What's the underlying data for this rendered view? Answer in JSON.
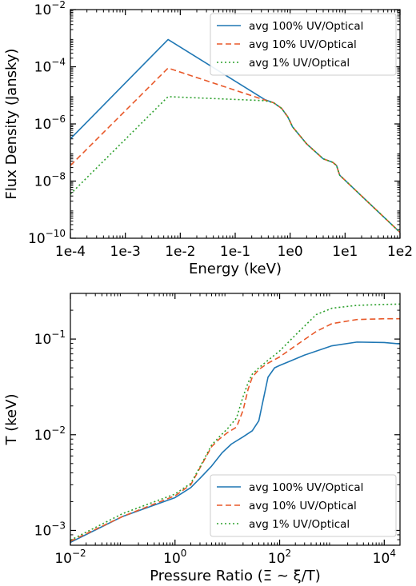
{
  "colors": {
    "blue": "#1f77b4",
    "orange": "#e8592a",
    "green": "#2ca02c"
  },
  "chart_data": [
    {
      "type": "line",
      "xlabel": "Energy (keV)",
      "ylabel": "Flux Density (Jansky)",
      "xscale": "log",
      "yscale": "log",
      "xlim": [
        0.0001,
        100
      ],
      "ylim": [
        1e-10,
        0.01
      ],
      "grid": false,
      "legend_position": "top-right",
      "x_ticks": [
        {
          "value": 0.0001,
          "label": "1e-4"
        },
        {
          "value": 0.001,
          "label": "1e-3"
        },
        {
          "value": 0.01,
          "label": "1e-2"
        },
        {
          "value": 0.1,
          "label": "1e-1"
        },
        {
          "value": 1,
          "label": "1e0"
        },
        {
          "value": 10,
          "label": "1e1"
        },
        {
          "value": 100,
          "label": "1e2"
        }
      ],
      "y_ticks": [
        {
          "value": 1e-10,
          "base": "10",
          "exp": "−10"
        },
        {
          "value": 1e-08,
          "base": "10",
          "exp": "−8"
        },
        {
          "value": 1e-06,
          "base": "10",
          "exp": "−6"
        },
        {
          "value": 0.0001,
          "base": "10",
          "exp": "−4"
        },
        {
          "value": 0.01,
          "base": "10",
          "exp": "−2"
        }
      ],
      "series": [
        {
          "name": "avg 100% UV/Optical",
          "color": "#1f77b4",
          "dash": "solid",
          "x": [
            0.0001,
            0.006,
            0.35,
            0.5,
            0.7,
            0.9,
            1.0,
            1.1,
            2.0,
            4.0,
            6.0,
            7.0,
            7.5,
            8.0,
            20,
            100
          ],
          "y": [
            3e-07,
            0.0009,
            7e-06,
            5.5e-06,
            3.5e-06,
            1.8e-06,
            1.2e-06,
            8e-07,
            2e-07,
            6e-08,
            4.5e-08,
            3.5e-08,
            2.3e-08,
            1.6e-08,
            3e-09,
            1.6e-10
          ]
        },
        {
          "name": "avg 10% UV/Optical",
          "color": "#e8592a",
          "dash": "dashed",
          "x": [
            0.0001,
            0.006,
            0.35,
            0.5,
            0.7,
            0.9,
            1.0,
            1.1,
            2.0,
            4.0,
            6.0,
            7.0,
            7.5,
            8.0,
            20,
            100
          ],
          "y": [
            3.5e-08,
            9e-05,
            6.8e-06,
            5.5e-06,
            3.5e-06,
            1.8e-06,
            1.2e-06,
            8e-07,
            2e-07,
            6e-08,
            4.5e-08,
            3.5e-08,
            2.3e-08,
            1.6e-08,
            3e-09,
            1.6e-10
          ]
        },
        {
          "name": "avg 1% UV/Optical",
          "color": "#2ca02c",
          "dash": "dotted",
          "x": [
            0.0001,
            0.006,
            0.35,
            0.5,
            0.7,
            0.9,
            1.0,
            1.1,
            2.0,
            4.0,
            6.0,
            7.0,
            7.5,
            8.0,
            20,
            100
          ],
          "y": [
            3.5e-09,
            9e-06,
            6.5e-06,
            5.5e-06,
            3.5e-06,
            1.8e-06,
            1.2e-06,
            8e-07,
            2e-07,
            6e-08,
            4.5e-08,
            3.5e-08,
            2.3e-08,
            1.6e-08,
            3e-09,
            1.6e-10
          ]
        }
      ]
    },
    {
      "type": "line",
      "xlabel": "Pressure Ratio (Ξ ~ ξ/T)",
      "ylabel": "T (keV)",
      "xscale": "log",
      "yscale": "log",
      "xlim": [
        0.01,
        20000
      ],
      "ylim": [
        0.0007,
        0.3
      ],
      "grid": false,
      "legend_position": "bottom-right",
      "x_ticks": [
        {
          "value": 0.01,
          "base": "10",
          "exp": "−2"
        },
        {
          "value": 1,
          "base": "10",
          "exp": "0"
        },
        {
          "value": 100,
          "base": "10",
          "exp": "2"
        },
        {
          "value": 10000,
          "base": "10",
          "exp": "4"
        }
      ],
      "y_ticks": [
        {
          "value": 0.001,
          "base": "10",
          "exp": "−3"
        },
        {
          "value": 0.01,
          "base": "10",
          "exp": "−2"
        },
        {
          "value": 0.1,
          "base": "10",
          "exp": "−1"
        }
      ],
      "series": [
        {
          "name": "avg 100% UV/Optical",
          "color": "#1f77b4",
          "dash": "solid",
          "x": [
            0.01,
            0.1,
            1,
            2,
            3,
            5,
            8,
            12,
            20,
            30,
            40,
            50,
            60,
            80,
            100,
            150,
            300,
            1000,
            3000,
            10000,
            20000
          ],
          "y": [
            0.00075,
            0.0014,
            0.0022,
            0.0028,
            0.0035,
            0.0047,
            0.0065,
            0.008,
            0.0095,
            0.011,
            0.014,
            0.025,
            0.04,
            0.05,
            0.053,
            0.058,
            0.068,
            0.085,
            0.093,
            0.092,
            0.089
          ]
        },
        {
          "name": "avg 10% UV/Optical",
          "color": "#e8592a",
          "dash": "dashed",
          "x": [
            0.01,
            0.1,
            1,
            2,
            3,
            5,
            7,
            10,
            15,
            20,
            25,
            30,
            40,
            60,
            100,
            200,
            500,
            1000,
            3000,
            10000,
            20000
          ],
          "y": [
            0.00077,
            0.0014,
            0.0023,
            0.003,
            0.0045,
            0.0075,
            0.009,
            0.0105,
            0.012,
            0.018,
            0.03,
            0.04,
            0.048,
            0.056,
            0.065,
            0.085,
            0.12,
            0.145,
            0.16,
            0.163,
            0.163
          ]
        },
        {
          "name": "avg 1% UV/Optical",
          "color": "#2ca02c",
          "dash": "dotted",
          "x": [
            0.01,
            0.1,
            1,
            2,
            3,
            5,
            7,
            10,
            15,
            20,
            25,
            30,
            40,
            60,
            100,
            200,
            500,
            1000,
            3000,
            10000,
            20000
          ],
          "y": [
            0.00079,
            0.0015,
            0.0024,
            0.0031,
            0.0046,
            0.0078,
            0.0095,
            0.0115,
            0.015,
            0.025,
            0.035,
            0.043,
            0.05,
            0.06,
            0.075,
            0.11,
            0.18,
            0.21,
            0.225,
            0.23,
            0.232
          ]
        }
      ]
    }
  ]
}
